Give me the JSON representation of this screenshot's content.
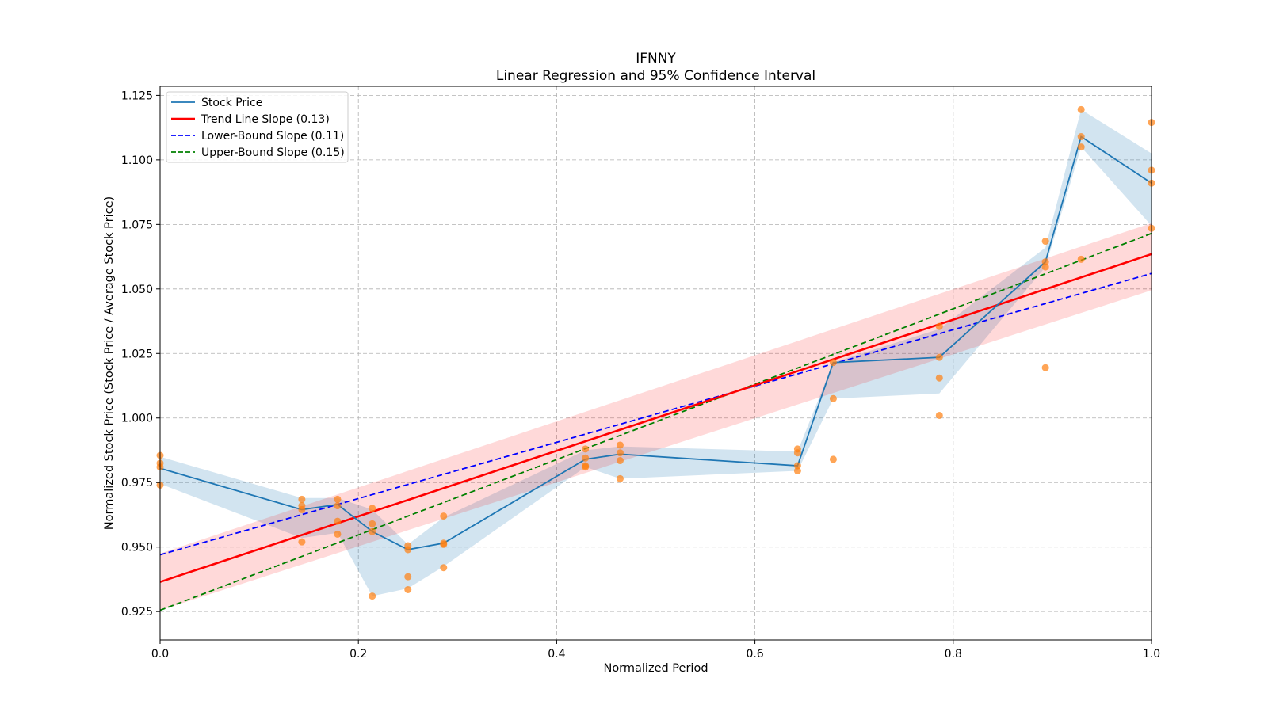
{
  "chart_data": {
    "type": "line",
    "title": "IFNNY",
    "subtitle": "Linear Regression and 95% Confidence Interval",
    "xlabel": "Normalized Period",
    "ylabel": "Normalized Stock Price (Stock Price / Average Stock Price)",
    "xlim": [
      0,
      1
    ],
    "ylim": [
      0.914,
      1.1285
    ],
    "x_ticks": [
      {
        "v": 0.0,
        "label": "0.0"
      },
      {
        "v": 0.2,
        "label": "0.2"
      },
      {
        "v": 0.4,
        "label": "0.4"
      },
      {
        "v": 0.6,
        "label": "0.6"
      },
      {
        "v": 0.8,
        "label": "0.8"
      },
      {
        "v": 1.0,
        "label": "1.0"
      }
    ],
    "y_ticks": [
      {
        "v": 0.925,
        "label": "0.925"
      },
      {
        "v": 0.95,
        "label": "0.950"
      },
      {
        "v": 0.975,
        "label": "0.975"
      },
      {
        "v": 1.0,
        "label": "1.000"
      },
      {
        "v": 1.025,
        "label": "1.025"
      },
      {
        "v": 1.05,
        "label": "1.050"
      },
      {
        "v": 1.075,
        "label": "1.075"
      },
      {
        "v": 1.1,
        "label": "1.100"
      },
      {
        "v": 1.125,
        "label": "1.125"
      }
    ],
    "grid": true,
    "legend_position": "top-left",
    "legend": [
      {
        "label": "Stock Price",
        "color": "#1f77b4",
        "style": "solid"
      },
      {
        "label": "Trend Line Slope (0.13)",
        "color": "#ff0000",
        "style": "solid"
      },
      {
        "label": "Lower-Bound Slope (0.11)",
        "color": "#0000ff",
        "style": "dashed"
      },
      {
        "label": "Upper-Bound Slope (0.15)",
        "color": "#008000",
        "style": "dashed"
      }
    ],
    "stock_price": {
      "color": "#1f77b4",
      "band_color": "#1f77b4",
      "points": [
        {
          "x": 0.0,
          "y": 0.9805,
          "lo": 0.9745,
          "hi": 0.985
        },
        {
          "x": 0.143,
          "y": 0.9645,
          "lo": 0.9535,
          "hi": 0.969
        },
        {
          "x": 0.179,
          "y": 0.9665,
          "lo": 0.9555,
          "hi": 0.969
        },
        {
          "x": 0.214,
          "y": 0.956,
          "lo": 0.931,
          "hi": 0.9645
        },
        {
          "x": 0.25,
          "y": 0.949,
          "lo": 0.934,
          "hi": 0.951
        },
        {
          "x": 0.286,
          "y": 0.9515,
          "lo": 0.9425,
          "hi": 0.9615
        },
        {
          "x": 0.429,
          "y": 0.984,
          "lo": 0.981,
          "hi": 0.9875
        },
        {
          "x": 0.464,
          "y": 0.986,
          "lo": 0.9765,
          "hi": 0.989
        },
        {
          "x": 0.643,
          "y": 0.9815,
          "lo": 0.9795,
          "hi": 0.987
        },
        {
          "x": 0.679,
          "y": 1.0215,
          "lo": 1.0075,
          "hi": 1.0215
        },
        {
          "x": 0.786,
          "y": 1.0235,
          "lo": 1.0095,
          "hi": 1.0345
        },
        {
          "x": 0.893,
          "y": 1.0605,
          "lo": 1.0585,
          "hi": 1.066
        },
        {
          "x": 0.929,
          "y": 1.109,
          "lo": 1.105,
          "hi": 1.1195
        },
        {
          "x": 1.0,
          "y": 1.091,
          "lo": 1.0745,
          "hi": 1.1025
        }
      ]
    },
    "scatter": {
      "color": "#ff7f0e",
      "points": [
        {
          "x": 0.0,
          "y": 0.9855
        },
        {
          "x": 0.0,
          "y": 0.9825
        },
        {
          "x": 0.0,
          "y": 0.981
        },
        {
          "x": 0.0,
          "y": 0.974
        },
        {
          "x": 0.143,
          "y": 0.9685
        },
        {
          "x": 0.143,
          "y": 0.966
        },
        {
          "x": 0.143,
          "y": 0.9645
        },
        {
          "x": 0.143,
          "y": 0.952
        },
        {
          "x": 0.179,
          "y": 0.9685
        },
        {
          "x": 0.179,
          "y": 0.966
        },
        {
          "x": 0.179,
          "y": 0.96
        },
        {
          "x": 0.179,
          "y": 0.955
        },
        {
          "x": 0.214,
          "y": 0.965
        },
        {
          "x": 0.214,
          "y": 0.959
        },
        {
          "x": 0.214,
          "y": 0.956
        },
        {
          "x": 0.214,
          "y": 0.931
        },
        {
          "x": 0.25,
          "y": 0.9505
        },
        {
          "x": 0.25,
          "y": 0.949
        },
        {
          "x": 0.25,
          "y": 0.9385
        },
        {
          "x": 0.25,
          "y": 0.9335
        },
        {
          "x": 0.286,
          "y": 0.962
        },
        {
          "x": 0.286,
          "y": 0.9515
        },
        {
          "x": 0.286,
          "y": 0.951
        },
        {
          "x": 0.286,
          "y": 0.942
        },
        {
          "x": 0.429,
          "y": 0.988
        },
        {
          "x": 0.429,
          "y": 0.9845
        },
        {
          "x": 0.429,
          "y": 0.9815
        },
        {
          "x": 0.429,
          "y": 0.981
        },
        {
          "x": 0.464,
          "y": 0.9895
        },
        {
          "x": 0.464,
          "y": 0.9865
        },
        {
          "x": 0.464,
          "y": 0.9835
        },
        {
          "x": 0.464,
          "y": 0.9765
        },
        {
          "x": 0.643,
          "y": 0.988
        },
        {
          "x": 0.643,
          "y": 0.9865
        },
        {
          "x": 0.643,
          "y": 0.9815
        },
        {
          "x": 0.643,
          "y": 0.9795
        },
        {
          "x": 0.679,
          "y": 1.0215
        },
        {
          "x": 0.679,
          "y": 1.0075
        },
        {
          "x": 0.679,
          "y": 0.984
        },
        {
          "x": 0.786,
          "y": 1.0355
        },
        {
          "x": 0.786,
          "y": 1.0235
        },
        {
          "x": 0.786,
          "y": 1.0155
        },
        {
          "x": 0.786,
          "y": 1.001
        },
        {
          "x": 0.893,
          "y": 1.0685
        },
        {
          "x": 0.893,
          "y": 1.0605
        },
        {
          "x": 0.893,
          "y": 1.0585
        },
        {
          "x": 0.893,
          "y": 1.0195
        },
        {
          "x": 0.929,
          "y": 1.1195
        },
        {
          "x": 0.929,
          "y": 1.109
        },
        {
          "x": 0.929,
          "y": 1.105
        },
        {
          "x": 0.929,
          "y": 1.0615
        },
        {
          "x": 1.0,
          "y": 1.1145
        },
        {
          "x": 1.0,
          "y": 1.096
        },
        {
          "x": 1.0,
          "y": 1.091
        },
        {
          "x": 1.0,
          "y": 1.0735
        }
      ]
    },
    "trend_line": {
      "color": "#ff0000",
      "y_at_x0": 0.9365,
      "y_at_x1": 1.0635
    },
    "trend_band": {
      "color": "#ff0000",
      "lo_at_x0": 0.9255,
      "hi_at_x0": 0.9475,
      "lo_at_x1": 1.0495,
      "hi_at_x1": 1.0755
    },
    "lower_bound_line": {
      "color": "#0000ff",
      "y_at_x0": 0.947,
      "y_at_x1": 1.056
    },
    "upper_bound_line": {
      "color": "#008000",
      "y_at_x0": 0.9255,
      "y_at_x1": 1.0715
    }
  }
}
